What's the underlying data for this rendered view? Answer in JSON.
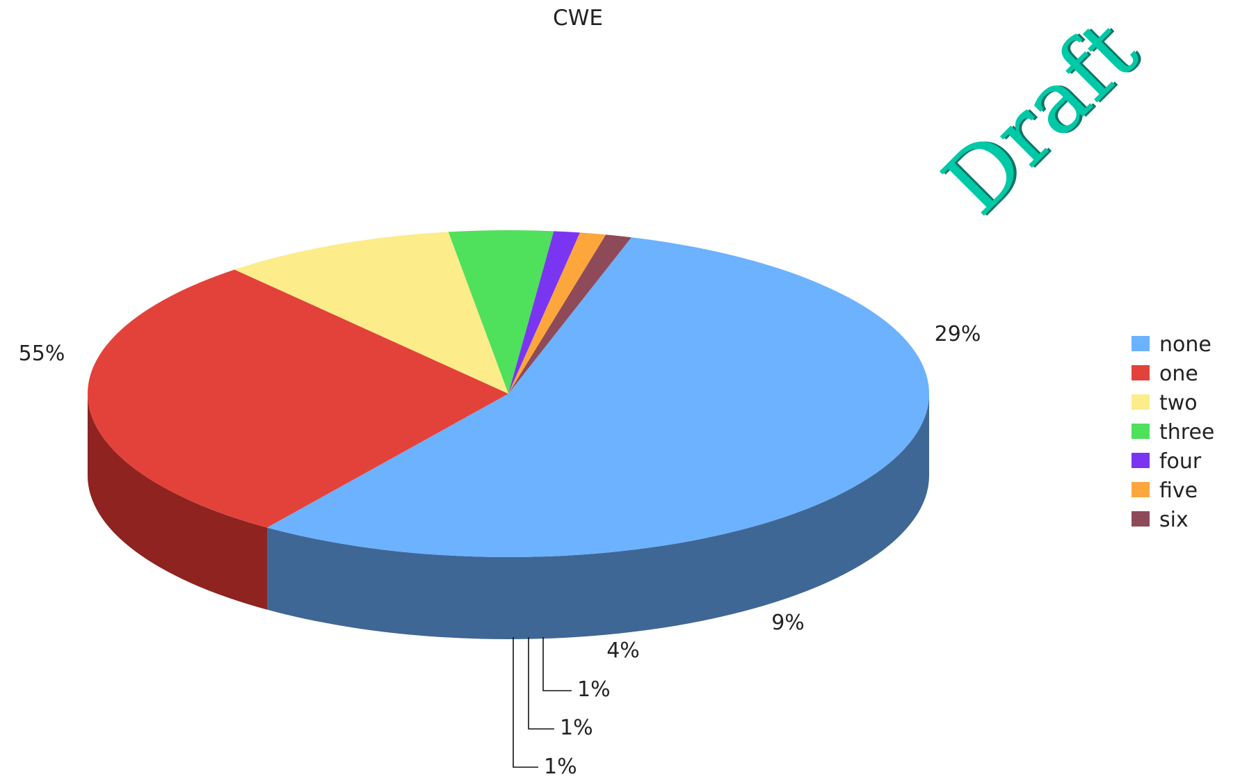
{
  "watermark": "Draft",
  "chart_data": {
    "type": "pie",
    "title": "CWE",
    "categories": [
      "none",
      "one",
      "two",
      "three",
      "four",
      "five",
      "six"
    ],
    "values": [
      55,
      29,
      9,
      4,
      1,
      1,
      1
    ],
    "labels": [
      "55%",
      "29%",
      "9%",
      "4%",
      "1%",
      "1%",
      "1%"
    ],
    "colors": [
      "#6cb2ff",
      "#e3423a",
      "#fcec8a",
      "#4fe05c",
      "#7a35f2",
      "#fca63c",
      "#8e4a58"
    ],
    "side_colors": [
      "#3f6795",
      "#8e2320",
      "#8e8550",
      "#2c8a35",
      "#40208c",
      "#a86a22",
      "#5b2f38"
    ],
    "legend_position": "right",
    "three_d": true
  }
}
